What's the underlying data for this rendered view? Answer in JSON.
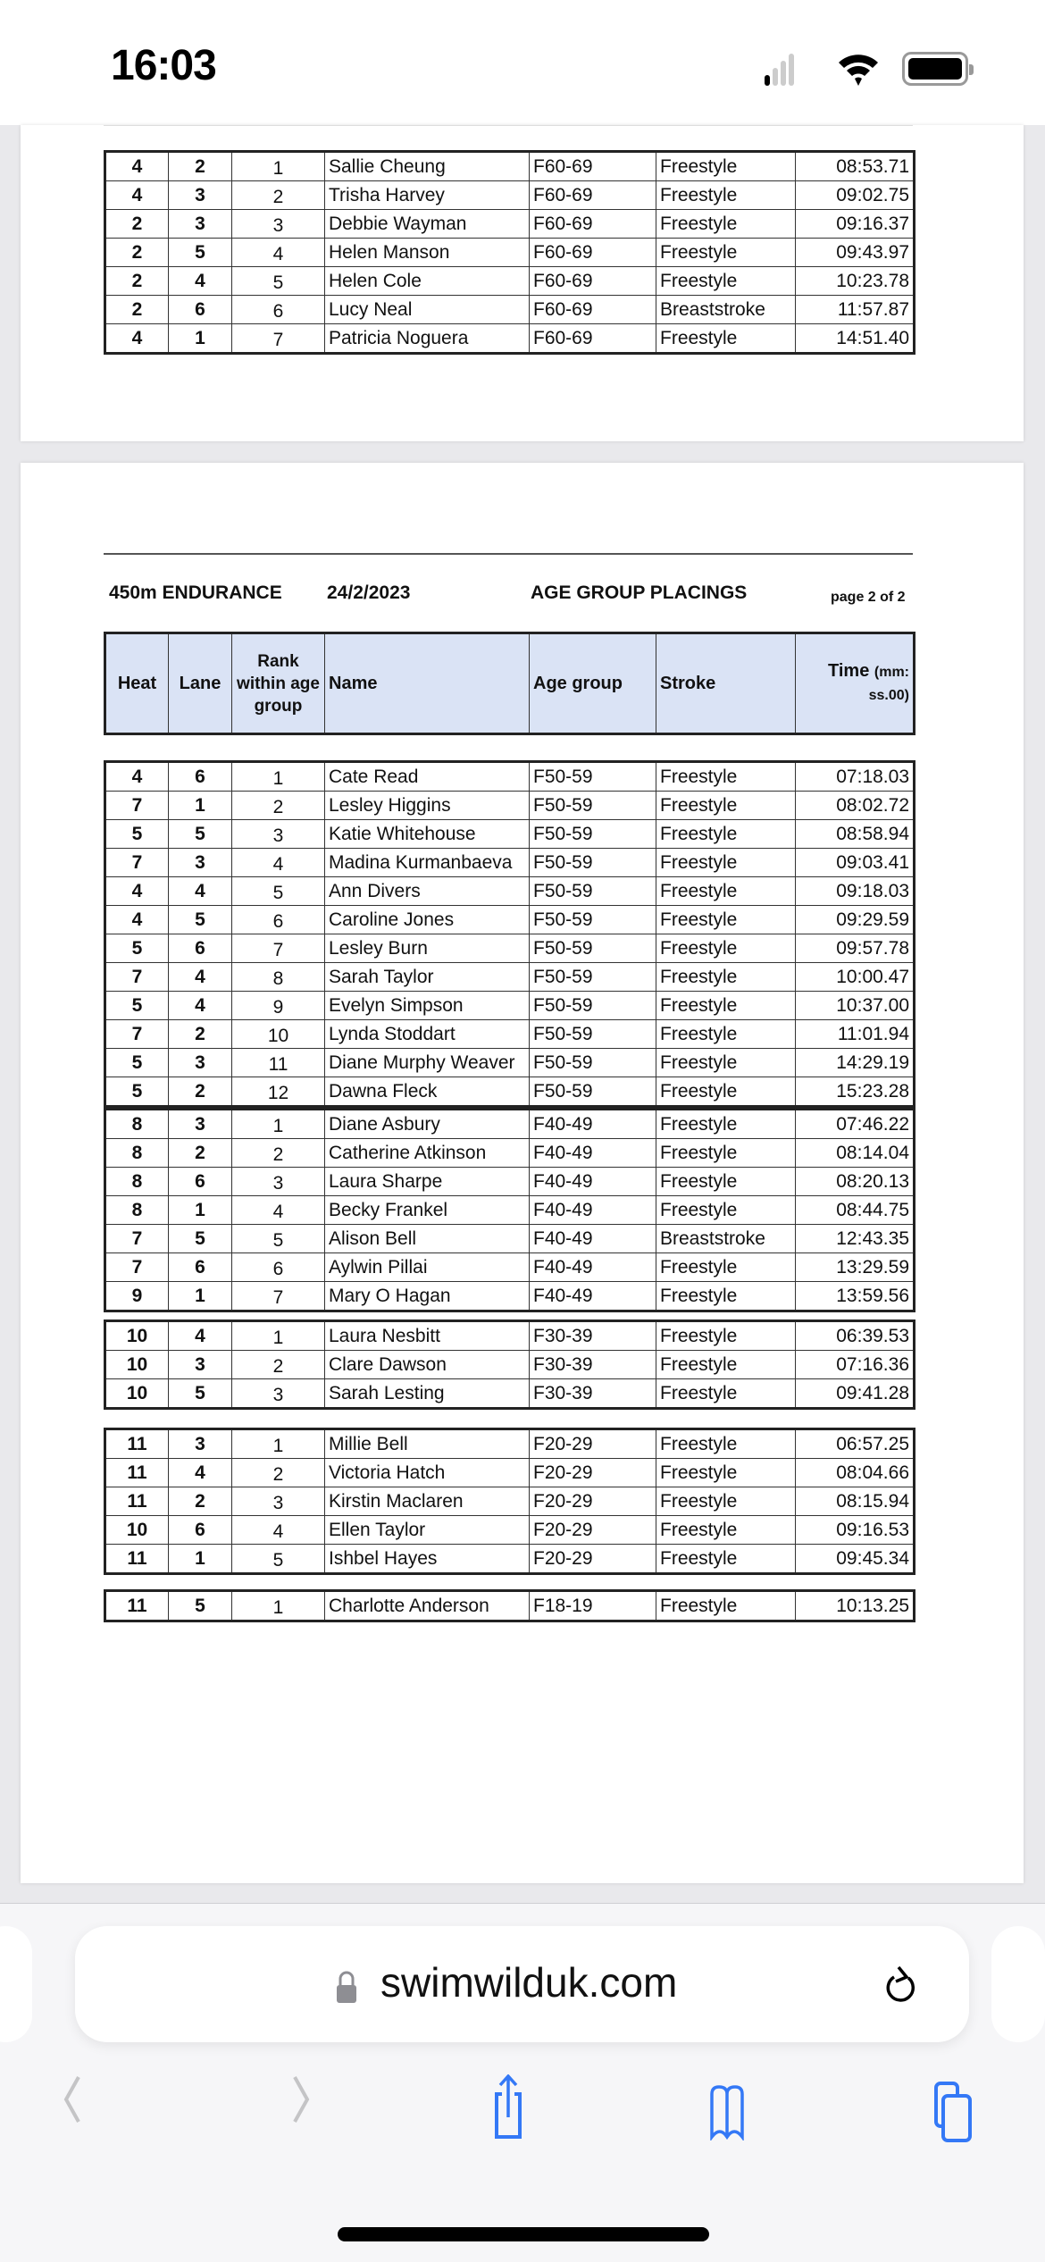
{
  "status_bar": {
    "time": "16:03",
    "signal_bars_active": 1,
    "signal_bars_total": 4
  },
  "page1": {
    "rows": [
      [
        "4",
        "2",
        "1",
        "Sallie Cheung",
        "F60-69",
        "Freestyle",
        "08:53.71"
      ],
      [
        "4",
        "3",
        "2",
        "Trisha Harvey",
        "F60-69",
        "Freestyle",
        "09:02.75"
      ],
      [
        "2",
        "3",
        "3",
        "Debbie Wayman",
        "F60-69",
        "Freestyle",
        "09:16.37"
      ],
      [
        "2",
        "5",
        "4",
        "Helen Manson",
        "F60-69",
        "Freestyle",
        "09:43.97"
      ],
      [
        "2",
        "4",
        "5",
        "Helen Cole",
        "F60-69",
        "Freestyle",
        "10:23.78"
      ],
      [
        "2",
        "6",
        "6",
        "Lucy Neal",
        "F60-69",
        "Breaststroke",
        "11:57.87"
      ],
      [
        "4",
        "1",
        "7",
        "Patricia Noguera",
        "F60-69",
        "Freestyle",
        "14:51.40"
      ]
    ]
  },
  "page2": {
    "event": "450m ENDURANCE",
    "date": "24/2/2023",
    "heading": "AGE GROUP PLACINGS",
    "page_label": "page 2 of 2",
    "columns": {
      "heat": "Heat",
      "lane": "Lane",
      "rank": "Rank within age group",
      "name": "Name",
      "age_group": "Age group",
      "stroke": "Stroke",
      "time_main": "Time",
      "time_unit": "(mm: ss.00)"
    },
    "groups": [
      {
        "rows": [
          [
            "4",
            "6",
            "1",
            "Cate Read",
            "F50-59",
            "Freestyle",
            "07:18.03"
          ],
          [
            "7",
            "1",
            "2",
            "Lesley Higgins",
            "F50-59",
            "Freestyle",
            "08:02.72"
          ],
          [
            "5",
            "5",
            "3",
            "Katie Whitehouse",
            "F50-59",
            "Freestyle",
            "08:58.94"
          ],
          [
            "7",
            "3",
            "4",
            "Madina Kurmanbaeva",
            "F50-59",
            "Freestyle",
            "09:03.41"
          ],
          [
            "4",
            "4",
            "5",
            "Ann Divers",
            "F50-59",
            "Freestyle",
            "09:18.03"
          ],
          [
            "4",
            "5",
            "6",
            "Caroline Jones",
            "F50-59",
            "Freestyle",
            "09:29.59"
          ],
          [
            "5",
            "6",
            "7",
            "Lesley Burn",
            "F50-59",
            "Freestyle",
            "09:57.78"
          ],
          [
            "7",
            "4",
            "8",
            "Sarah Taylor",
            "F50-59",
            "Freestyle",
            "10:00.47"
          ],
          [
            "5",
            "4",
            "9",
            "Evelyn Simpson",
            "F50-59",
            "Freestyle",
            "10:37.00"
          ],
          [
            "7",
            "2",
            "10",
            "Lynda Stoddart",
            "F50-59",
            "Freestyle",
            "11:01.94"
          ],
          [
            "5",
            "3",
            "11",
            "Diane Murphy Weaver",
            "F50-59",
            "Freestyle",
            "14:29.19"
          ],
          [
            "5",
            "2",
            "12",
            "Dawna Fleck",
            "F50-59",
            "Freestyle",
            "15:23.28"
          ]
        ]
      },
      {
        "rows": [
          [
            "8",
            "3",
            "1",
            "Diane Asbury",
            "F40-49",
            "Freestyle",
            "07:46.22"
          ],
          [
            "8",
            "2",
            "2",
            "Catherine Atkinson",
            "F40-49",
            "Freestyle",
            "08:14.04"
          ],
          [
            "8",
            "6",
            "3",
            "Laura Sharpe",
            "F40-49",
            "Freestyle",
            "08:20.13"
          ],
          [
            "8",
            "1",
            "4",
            "Becky Frankel",
            "F40-49",
            "Freestyle",
            "08:44.75"
          ],
          [
            "7",
            "5",
            "5",
            "Alison Bell",
            "F40-49",
            "Breaststroke",
            "12:43.35"
          ],
          [
            "7",
            "6",
            "6",
            "Aylwin Pillai",
            "F40-49",
            "Freestyle",
            "13:29.59"
          ],
          [
            "9",
            "1",
            "7",
            "Mary O Hagan",
            "F40-49",
            "Freestyle",
            "13:59.56"
          ]
        ]
      },
      {
        "rows": [
          [
            "10",
            "4",
            "1",
            "Laura Nesbitt",
            "F30-39",
            "Freestyle",
            "06:39.53"
          ],
          [
            "10",
            "3",
            "2",
            "Clare Dawson",
            "F30-39",
            "Freestyle",
            "07:16.36"
          ],
          [
            "10",
            "5",
            "3",
            "Sarah Lesting",
            "F30-39",
            "Freestyle",
            "09:41.28"
          ]
        ]
      },
      {
        "rows": [
          [
            "11",
            "3",
            "1",
            "Millie Bell",
            "F20-29",
            "Freestyle",
            "06:57.25"
          ],
          [
            "11",
            "4",
            "2",
            "Victoria Hatch",
            "F20-29",
            "Freestyle",
            "08:04.66"
          ],
          [
            "11",
            "2",
            "3",
            "Kirstin Maclaren",
            "F20-29",
            "Freestyle",
            "08:15.94"
          ],
          [
            "10",
            "6",
            "4",
            "Ellen Taylor",
            "F20-29",
            "Freestyle",
            "09:16.53"
          ],
          [
            "11",
            "1",
            "5",
            "Ishbel Hayes",
            "F20-29",
            "Freestyle",
            "09:45.34"
          ]
        ]
      },
      {
        "rows": [
          [
            "11",
            "5",
            "1",
            "Charlotte Anderson",
            "F18-19",
            "Freestyle",
            "10:13.25"
          ]
        ]
      }
    ]
  },
  "browser": {
    "url": "swimwilduk.com",
    "accent_color": "#3478f6",
    "icons": [
      "lock-icon",
      "reload-icon",
      "back-icon",
      "forward-icon",
      "share-icon",
      "bookmarks-icon",
      "tabs-icon"
    ]
  }
}
